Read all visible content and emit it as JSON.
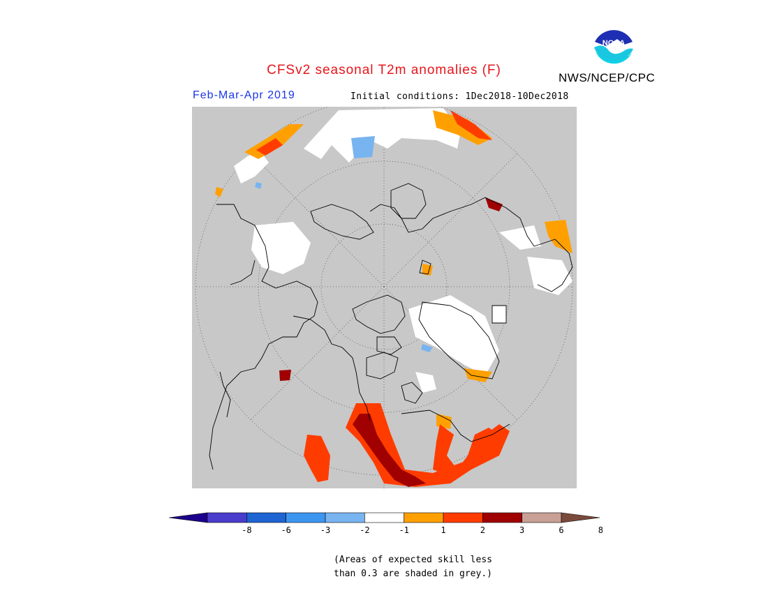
{
  "header": {
    "title": "CFSv2 seasonal T2m anomalies (F)",
    "season": "Feb-Mar-Apr 2019",
    "initial_conditions": "Initial conditions: 1Dec2018-10Dec2018",
    "organization": "NWS/NCEP/CPC",
    "logo_text": "NOAA"
  },
  "map": {
    "projection": "north polar stereographic",
    "background_color": "#c8c8c8"
  },
  "colorbar": {
    "tick_labels": [
      "-8",
      "-6",
      "-3",
      "-2",
      "-1",
      "1",
      "2",
      "3",
      "6",
      "8"
    ],
    "colors": [
      "#1c008c",
      "#4a3ccc",
      "#1e64d2",
      "#3c96f0",
      "#78b4f0",
      "#ffffff",
      "#ffa000",
      "#ff3c00",
      "#a00000",
      "#c8a096",
      "#7a4a3c"
    ]
  },
  "footnote": {
    "line1": "(Areas of expected skill less",
    "line2": "than 0.3 are shaded in grey.)"
  }
}
